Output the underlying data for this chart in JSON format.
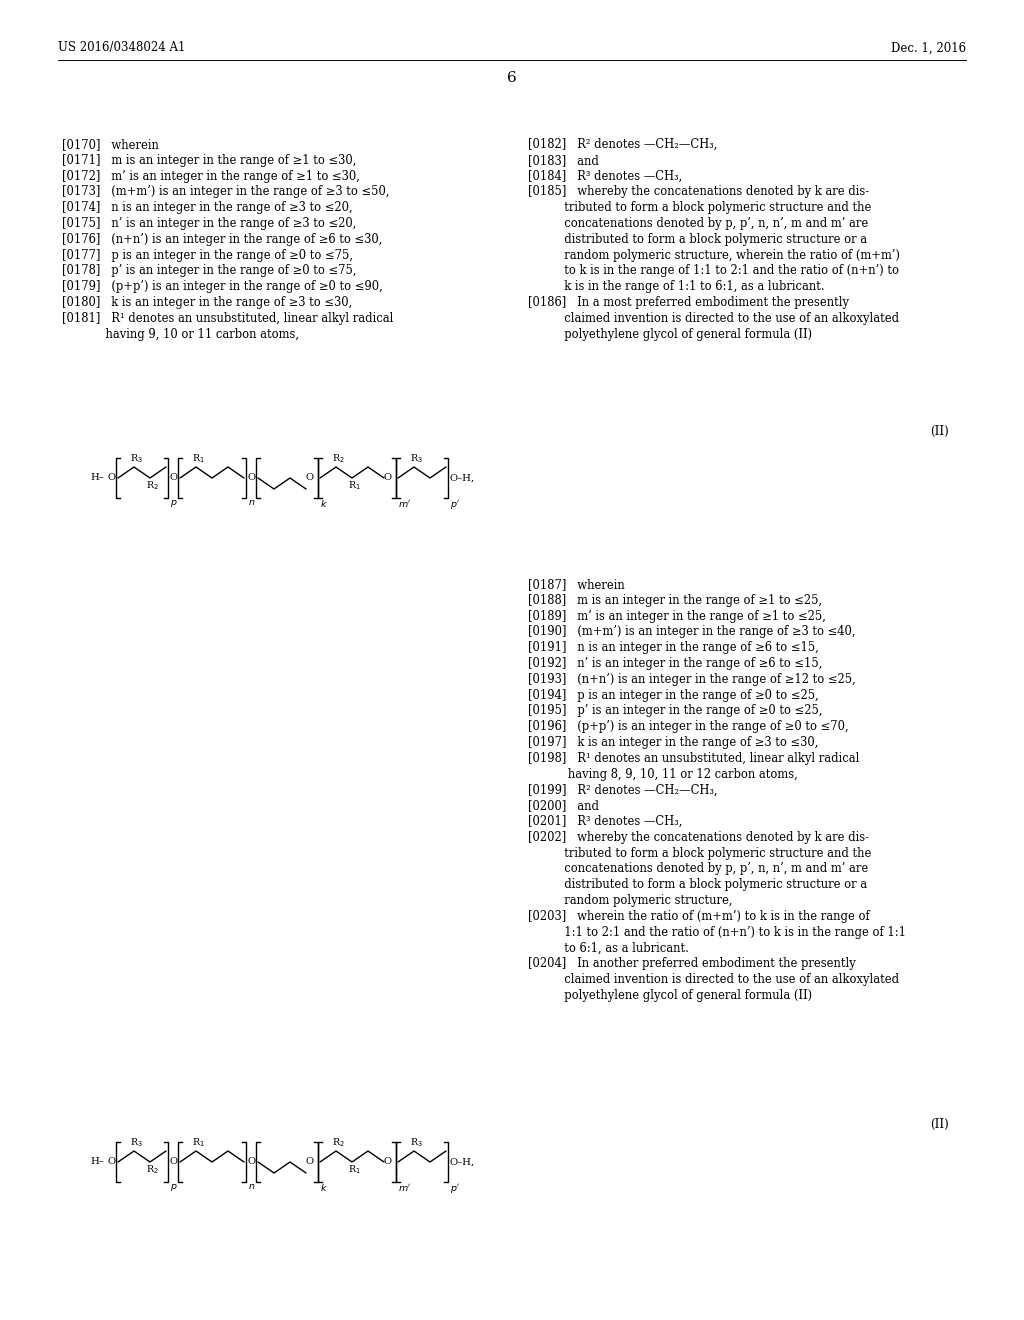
{
  "header_left": "US 2016/0348024 A1",
  "header_right": "Dec. 1, 2016",
  "page_number": "6",
  "bg_color": "#ffffff",
  "text_color": "#000000",
  "left_col": [
    "[0170]   wherein",
    "[0171]   m is an integer in the range of ≥1 to ≤30,",
    "[0172]   m’ is an integer in the range of ≥1 to ≤30,",
    "[0173]   (m+m’) is an integer in the range of ≥3 to ≤50,",
    "[0174]   n is an integer in the range of ≥3 to ≤20,",
    "[0175]   n’ is an integer in the range of ≥3 to ≤20,",
    "[0176]   (n+n’) is an integer in the range of ≥6 to ≤30,",
    "[0177]   p is an integer in the range of ≥0 to ≤75,",
    "[0178]   p’ is an integer in the range of ≥0 to ≤75,",
    "[0179]   (p+p’) is an integer in the range of ≥0 to ≤90,",
    "[0180]   k is an integer in the range of ≥3 to ≤30,",
    "[0181]   R¹ denotes an unsubstituted, linear alkyl radical",
    "            having 9, 10 or 11 carbon atoms,"
  ],
  "right_col": [
    "[0182]   R² denotes —CH₂—CH₃,",
    "[0183]   and",
    "[0184]   R³ denotes —CH₃,",
    "[0185]   whereby the concatenations denoted by k are dis-",
    "          tributed to form a block polymeric structure and the",
    "          concatenations denoted by p, p’, n, n’, m and m’ are",
    "          distributed to form a block polymeric structure or a",
    "          random polymeric structure, wherein the ratio of (m+m’)",
    "          to k is in the range of 1:1 to 2:1 and the ratio of (n+n’) to",
    "          k is in the range of 1:1 to 6:1, as a lubricant.",
    "[0186]   In a most preferred embodiment the presently",
    "          claimed invention is directed to the use of an alkoxylated",
    "          polyethylene glycol of general formula (II)"
  ],
  "right_col2": [
    "[0187]   wherein",
    "[0188]   m is an integer in the range of ≥1 to ≤25,",
    "[0189]   m’ is an integer in the range of ≥1 to ≤25,",
    "[0190]   (m+m’) is an integer in the range of ≥3 to ≤40,",
    "[0191]   n is an integer in the range of ≥6 to ≤15,",
    "[0192]   n’ is an integer in the range of ≥6 to ≤15,",
    "[0193]   (n+n’) is an integer in the range of ≥12 to ≤25,",
    "[0194]   p is an integer in the range of ≥0 to ≤25,",
    "[0195]   p’ is an integer in the range of ≥0 to ≤25,",
    "[0196]   (p+p’) is an integer in the range of ≥0 to ≤70,",
    "[0197]   k is an integer in the range of ≥3 to ≤30,",
    "[0198]   R¹ denotes an unsubstituted, linear alkyl radical",
    "           having 8, 9, 10, 11 or 12 carbon atoms,",
    "[0199]   R² denotes —CH₂—CH₃,",
    "[0200]   and",
    "[0201]   R³ denotes —CH₃,",
    "[0202]   whereby the concatenations denoted by k are dis-",
    "          tributed to form a block polymeric structure and the",
    "          concatenations denoted by p, p’, n, n’, m and m’ are",
    "          distributed to form a block polymeric structure or a",
    "          random polymeric structure,",
    "[0203]   wherein the ratio of (m+m’) to k is in the range of",
    "          1:1 to 2:1 and the ratio of (n+n’) to k is in the range of 1:1",
    "          to 6:1, as a lubricant.",
    "[0204]   In another preferred embodiment the presently",
    "          claimed invention is directed to the use of an alkoxylated",
    "          polyethylene glycol of general formula (II)"
  ]
}
